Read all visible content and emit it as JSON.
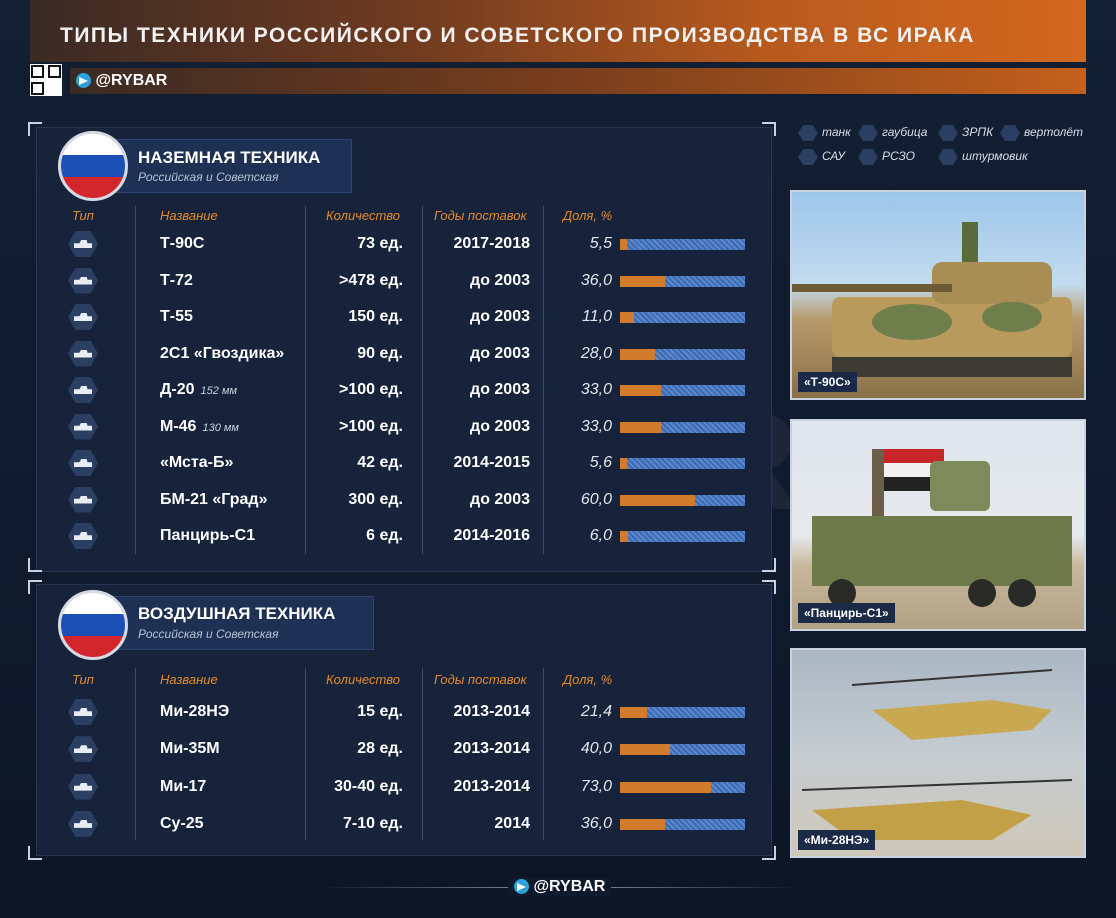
{
  "header": {
    "title": "ТИПЫ ТЕХНИКИ РОССИЙСКОГО И СОВЕТСКОГО ПРОИЗВОДСТВА В ВС ИРАКА",
    "brand": "@RYBAR"
  },
  "columns": {
    "type": "Тип",
    "name": "Название",
    "qty": "Количество",
    "years": "Годы поставок",
    "share": "Доля, %"
  },
  "ground": {
    "title": "НАЗЕМНАЯ ТЕХНИКА",
    "subtitle": "Российская и Советская",
    "rows": [
      {
        "icon": "tank-icon",
        "name": "Т-90С",
        "note": "",
        "qty": "73 ед.",
        "years": "2017-2018",
        "share_label": "5,5",
        "share": 5.5
      },
      {
        "icon": "tank-icon",
        "name": "Т-72",
        "note": "",
        "qty": ">478 ед.",
        "years": "до 2003",
        "share_label": "36,0",
        "share": 36.0
      },
      {
        "icon": "tank-icon",
        "name": "Т-55",
        "note": "",
        "qty": "150 ед.",
        "years": "до 2003",
        "share_label": "11,0",
        "share": 11.0
      },
      {
        "icon": "sau-icon",
        "name": "2С1 «Гвоздика»",
        "note": "",
        "qty": "90 ед.",
        "years": "до 2003",
        "share_label": "28,0",
        "share": 28.0
      },
      {
        "icon": "howitzer-icon",
        "name": "Д-20",
        "note": "152 мм",
        "qty": ">100 ед.",
        "years": "до 2003",
        "share_label": "33,0",
        "share": 33.0
      },
      {
        "icon": "howitzer-icon",
        "name": "М-46",
        "note": "130 мм",
        "qty": ">100 ед.",
        "years": "до 2003",
        "share_label": "33,0",
        "share": 33.0
      },
      {
        "icon": "howitzer-icon",
        "name": "«Мста-Б»",
        "note": "",
        "qty": "42 ед.",
        "years": "2014-2015",
        "share_label": "5,6",
        "share": 5.6
      },
      {
        "icon": "rszo-icon",
        "name": "БМ-21 «Град»",
        "note": "",
        "qty": "300 ед.",
        "years": "до 2003",
        "share_label": "60,0",
        "share": 60.0
      },
      {
        "icon": "zrpk-icon",
        "name": "Панцирь-С1",
        "note": "",
        "qty": "6 ед.",
        "years": "2014-2016",
        "share_label": "6,0",
        "share": 6.0
      }
    ]
  },
  "air": {
    "title": "ВОЗДУШНАЯ ТЕХНИКА",
    "subtitle": "Российская и Советская",
    "rows": [
      {
        "icon": "helicopter-icon",
        "name": "Ми-28НЭ",
        "note": "",
        "qty": "15 ед.",
        "years": "2013-2014",
        "share_label": "21,4",
        "share": 21.4
      },
      {
        "icon": "helicopter-icon",
        "name": "Ми-35М",
        "note": "",
        "qty": "28 ед.",
        "years": "2013-2014",
        "share_label": "40,0",
        "share": 40.0
      },
      {
        "icon": "helicopter-icon",
        "name": "Ми-17",
        "note": "",
        "qty": "30-40 ед.",
        "years": "2013-2014",
        "share_label": "73,0",
        "share": 73.0
      },
      {
        "icon": "attack-aircraft-icon",
        "name": "Су-25",
        "note": "",
        "qty": "7-10 ед.",
        "years": "2014",
        "share_label": "36,0",
        "share": 36.0
      }
    ]
  },
  "legend": {
    "tank": "танк",
    "howitzer": "гаубица",
    "zrpk": "ЗРПК",
    "helicopter": "вертолёт",
    "sau": "САУ",
    "rszo": "РСЗО",
    "attack": "штурмовик"
  },
  "photos": {
    "p1": "«Т-90С»",
    "p2": "«Панцирь-С1»",
    "p3": "«Ми-28НЭ»"
  },
  "colors": {
    "accent": "#e48a2b",
    "bar_fill": "#d37b2d",
    "bar_bg": "#4a78c0",
    "panel": "#16233a"
  }
}
